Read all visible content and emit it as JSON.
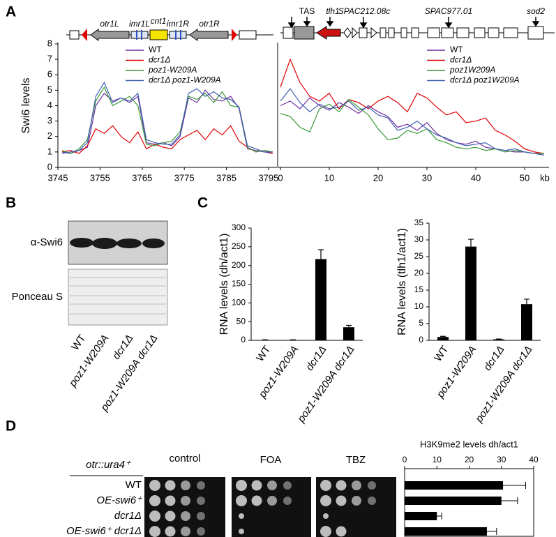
{
  "panel_labels": [
    "A",
    "B",
    "C",
    "D"
  ],
  "diagram_left": {
    "labels": [
      "otr1L",
      "imr1L",
      "cnt1",
      "imr1R",
      "otr1R"
    ]
  },
  "diagram_right": {
    "labels": [
      "TAS",
      "tlh1",
      "SPAC212.08c",
      "SPAC977.01",
      "sod2"
    ]
  },
  "blot": {
    "row_labels": [
      "α-Swi6",
      "Ponceau S"
    ],
    "lanes": [
      "WT",
      "poz1-W209A",
      "dcr1Δ",
      "poz1-W209A dcr1Δ"
    ]
  },
  "spot_assay": {
    "header": "otr::ura4⁺",
    "columns": [
      "control",
      "FOA",
      "TBZ"
    ]
  },
  "chart_data": [
    {
      "type": "line",
      "ylabel": "Swi6 levels",
      "x": [
        3746,
        3748,
        3750,
        3752,
        3754,
        3756,
        3758,
        3760,
        3762,
        3764,
        3766,
        3768,
        3770,
        3772,
        3774,
        3776,
        3778,
        3780,
        3782,
        3784,
        3786,
        3788,
        3790,
        3792,
        3794,
        3796
      ],
      "xlim": [
        3745,
        3797
      ],
      "xticks": [
        3745,
        3755,
        3765,
        3775,
        3785,
        3795
      ],
      "ylim": [
        0,
        8
      ],
      "yticks": [
        0,
        1,
        2,
        3,
        4,
        5,
        6,
        7,
        8
      ],
      "series": [
        {
          "name": "WT",
          "color": "#7030a0",
          "values": [
            1,
            0.9,
            1.1,
            1.3,
            4,
            4.8,
            4.3,
            4.5,
            4.2,
            4.6,
            1.6,
            1.5,
            1.6,
            1.4,
            2,
            4.5,
            4.2,
            5,
            4.4,
            4.3,
            4.6,
            3.8,
            1.2,
            1.1,
            1,
            0.9
          ]
        },
        {
          "name": "dcr1Δ",
          "color": "#e00000",
          "values": [
            1,
            1.1,
            0.9,
            1.4,
            2.5,
            2.2,
            2.7,
            2,
            1.6,
            2.3,
            1.2,
            1.5,
            1.3,
            1.2,
            1.8,
            2.1,
            2.4,
            1.8,
            2.5,
            2.1,
            2.7,
            1.7,
            1.3,
            1,
            1.1,
            0.9
          ]
        },
        {
          "name": "poz1-W209A",
          "color": "#3a9a3a",
          "values": [
            1.1,
            0.9,
            1.2,
            1.8,
            4.3,
            5.2,
            4,
            4.3,
            4.6,
            4,
            1.5,
            1.4,
            1.6,
            1.7,
            2.3,
            4.6,
            4.4,
            4.8,
            4.2,
            4.9,
            4,
            3.9,
            1.3,
            1,
            1.1,
            1
          ]
        },
        {
          "name": "dcr1Δ poz1-W209A",
          "color": "#4060b0",
          "values": [
            0.9,
            1,
            1.1,
            1.6,
            4.6,
            5.5,
            4.2,
            4.5,
            4.3,
            4.8,
            1.8,
            1.6,
            1.5,
            1.5,
            2.1,
            4.8,
            5.1,
            4.6,
            4.9,
            4.5,
            4.4,
            3.9,
            1.4,
            1.2,
            1,
            1
          ]
        }
      ]
    },
    {
      "type": "line",
      "xlabel": "kb",
      "x": [
        0,
        2,
        4,
        6,
        8,
        10,
        12,
        14,
        16,
        18,
        20,
        22,
        24,
        26,
        28,
        30,
        32,
        34,
        36,
        38,
        40,
        42,
        44,
        46,
        48,
        50,
        52,
        54
      ],
      "xlim": [
        0,
        55
      ],
      "xticks": [
        0,
        10,
        20,
        30,
        40,
        50
      ],
      "ylim": [
        0,
        8
      ],
      "series": [
        {
          "name": "WT",
          "color": "#7030a0",
          "values": [
            4,
            4.3,
            3.8,
            4.5,
            4,
            3.7,
            4.2,
            3.9,
            3.5,
            4,
            3.6,
            3.3,
            2.6,
            2.8,
            2.4,
            2.9,
            2.2,
            1.8,
            1.6,
            1.5,
            1.7,
            1.3,
            1.2,
            1.1,
            1,
            1,
            0.9,
            0.8
          ]
        },
        {
          "name": "dcr1Δ",
          "color": "#e00000",
          "values": [
            5.2,
            7,
            5.5,
            4.6,
            4.3,
            4.8,
            3.8,
            4.4,
            4.2,
            3.8,
            4.3,
            4.6,
            4.2,
            3.6,
            4.8,
            4.5,
            3.9,
            3.4,
            3.6,
            2.9,
            3,
            3.2,
            2.4,
            2.1,
            1.7,
            1.2,
            1,
            0.9
          ]
        },
        {
          "name": "poz1W209A",
          "color": "#3a9a3a",
          "values": [
            3.5,
            3.3,
            2.6,
            2.3,
            3.8,
            4.1,
            3.6,
            4.4,
            3.9,
            3.4,
            2.5,
            1.8,
            1.9,
            2.4,
            2.2,
            2.5,
            1.8,
            1.6,
            1.3,
            1.2,
            1.3,
            1.1,
            1.2,
            1,
            1.1,
            1,
            0.9,
            0.9
          ]
        },
        {
          "name": "dcr1Δ poz1W209A",
          "color": "#4060b0",
          "values": [
            4.3,
            5.1,
            4.2,
            3.6,
            4.1,
            3.8,
            3.9,
            4.3,
            3.7,
            3.9,
            3.4,
            3.2,
            2.4,
            2.6,
            3,
            2.5,
            2.1,
            1.9,
            1.6,
            1.4,
            1.5,
            1.6,
            1.2,
            1.1,
            1.2,
            1,
            0.9,
            0.8
          ]
        }
      ]
    },
    {
      "type": "bar",
      "ylabel": "RNA levels (dh/act1)",
      "color": "#000000",
      "categories": [
        "WT",
        "poz1-W209A",
        "dcr1Δ",
        "poz1-W209A dcr1Δ"
      ],
      "values": [
        1,
        1,
        217,
        35
      ],
      "errors": [
        0.5,
        0.5,
        25,
        5
      ],
      "ylim": [
        0,
        300
      ],
      "yticks": [
        0,
        50,
        100,
        150,
        200,
        250,
        300
      ]
    },
    {
      "type": "bar",
      "ylabel": "RNA levels (tlh1/act1)",
      "color": "#000000",
      "categories": [
        "WT",
        "poz1-W209A",
        "dcr1Δ",
        "poz1-W209A dcr1Δ"
      ],
      "values": [
        1,
        28,
        0.3,
        10.8
      ],
      "errors": [
        0.2,
        2.2,
        0.1,
        1.5
      ],
      "ylim": [
        0,
        35
      ],
      "yticks": [
        0,
        5,
        10,
        15,
        20,
        25,
        30,
        35
      ]
    },
    {
      "type": "hbar",
      "title": "H3K9me2 levels dh/act1",
      "color": "#000000",
      "categories": [
        "WT",
        "OE-swi6⁺",
        "dcr1Δ",
        "OE-swi6⁺ dcr1Δ"
      ],
      "values": [
        30.5,
        30,
        10,
        25.5
      ],
      "errors": [
        7,
        5,
        1.5,
        3
      ],
      "xlim": [
        0,
        40
      ],
      "xticks": [
        0,
        10,
        20,
        30,
        40
      ]
    }
  ]
}
